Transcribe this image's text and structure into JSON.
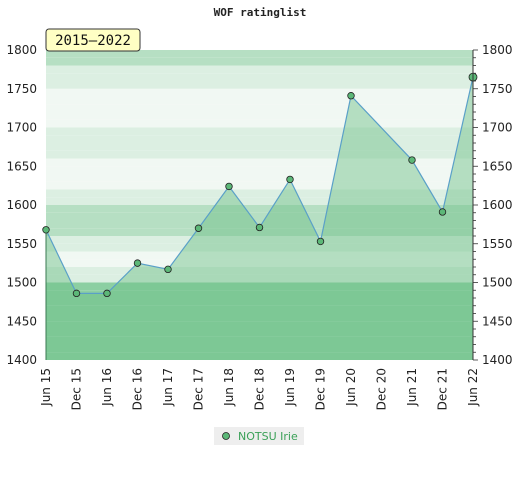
{
  "chart_data": {
    "type": "area",
    "title": "WOF ratinglist",
    "range_label": "2015–2022",
    "categories": [
      "Jun 15",
      "Dec 15",
      "Jun 16",
      "Dec 16",
      "Jun 17",
      "Dec 17",
      "Jun 18",
      "Dec 18",
      "Jun 19",
      "Dec 19",
      "Jun 20",
      "Dec 20",
      "Jun 21",
      "Dec 21",
      "Jun 22"
    ],
    "x": [
      0,
      1,
      2,
      3,
      4,
      5,
      6,
      7,
      8,
      9,
      10,
      12,
      13,
      14
    ],
    "series": [
      {
        "name": "NOTSU Irie",
        "values": [
          1568,
          1486,
          1486,
          1525,
          1517,
          1570,
          1624,
          1571,
          1633,
          1553,
          1741,
          1658,
          1591,
          1765
        ]
      }
    ],
    "ylim": [
      1400,
      1800
    ],
    "yticks": [
      1400,
      1450,
      1500,
      1550,
      1600,
      1650,
      1700,
      1750,
      1800
    ],
    "legend_position": "bottom",
    "colors": {
      "line": "#5aa0c8",
      "fill": "#6bbf86",
      "marker": "#5cb878",
      "band_light": "#f1f8f3",
      "band_mid": "#dcefe2",
      "band_green": "#b6dfc3",
      "band_deep": "#8ccfa2",
      "legend_text": "#3aa057",
      "range_bg": "#ffffc4"
    }
  }
}
